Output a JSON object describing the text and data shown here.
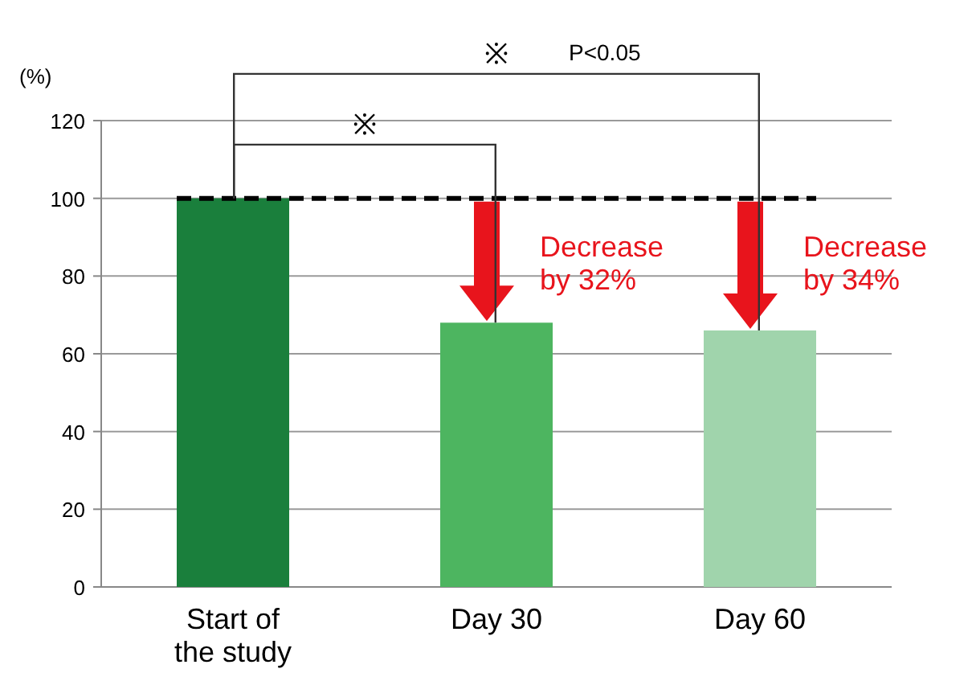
{
  "chart_data": {
    "type": "bar",
    "ylabel": "(%)",
    "categories": [
      "Start of\nthe study",
      "Day 30",
      "Day 60"
    ],
    "values": [
      100,
      68,
      66
    ],
    "colors": [
      "#1a7f3c",
      "#4db560",
      "#a0d4ac"
    ],
    "ylim": [
      0,
      120
    ],
    "yticks": [
      0,
      20,
      40,
      60,
      80,
      100,
      120
    ],
    "grid": "y",
    "ref_lines": [
      {
        "axis": "y",
        "value": 100,
        "color": "#000000",
        "line_style": "dashed"
      }
    ],
    "annotations": [
      {
        "text": "Decrease\nby 32%",
        "x": "Day 30",
        "y": 68
      },
      {
        "text": "Decrease\nby 34%",
        "x": "Day 60",
        "y": 66
      },
      "※",
      "※",
      "P<0.05"
    ]
  }
}
